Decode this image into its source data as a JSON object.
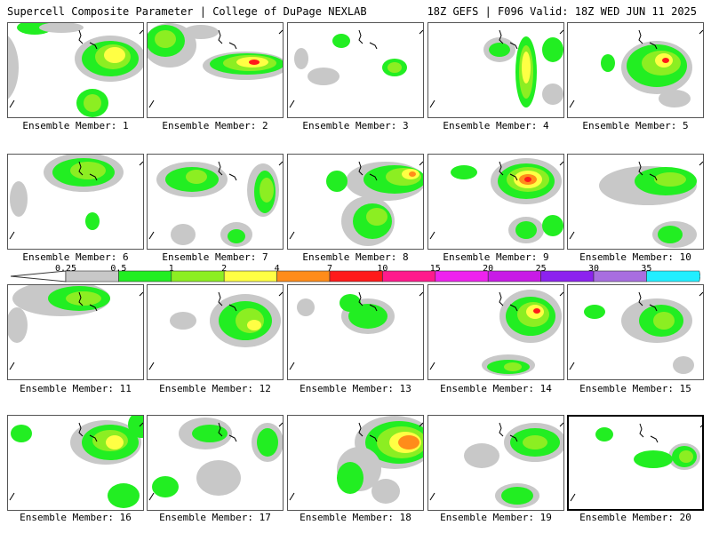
{
  "header": {
    "title": "Supercell Composite Parameter | College of DuPage NEXLAB",
    "run_info": "18Z GEFS | F096 Valid: 18Z WED JUN 11 2025"
  },
  "caption_prefix": "Ensemble Member: ",
  "selected_member": 20,
  "members": [
    {
      "label": "Ensemble Member: 1"
    },
    {
      "label": "Ensemble Member: 2"
    },
    {
      "label": "Ensemble Member: 3"
    },
    {
      "label": "Ensemble Member: 4"
    },
    {
      "label": "Ensemble Member: 5"
    },
    {
      "label": "Ensemble Member: 6"
    },
    {
      "label": "Ensemble Member: 7"
    },
    {
      "label": "Ensemble Member: 8"
    },
    {
      "label": "Ensemble Member: 9"
    },
    {
      "label": "Ensemble Member: 10"
    },
    {
      "label": "Ensemble Member: 11"
    },
    {
      "label": "Ensemble Member: 12"
    },
    {
      "label": "Ensemble Member: 13"
    },
    {
      "label": "Ensemble Member: 14"
    },
    {
      "label": "Ensemble Member: 15"
    },
    {
      "label": "Ensemble Member: 16"
    },
    {
      "label": "Ensemble Member: 17"
    },
    {
      "label": "Ensemble Member: 18"
    },
    {
      "label": "Ensemble Member: 19"
    },
    {
      "label": "Ensemble Member: 20"
    }
  ],
  "colorbar": {
    "thresholds": [
      "0.25",
      "0.5",
      "1",
      "2",
      "4",
      "7",
      "10",
      "15",
      "20",
      "25",
      "30",
      "35"
    ],
    "colors": [
      "#c8c8c8",
      "#22ee22",
      "#8cee22",
      "#ffff44",
      "#ff8c1a",
      "#ff1a1a",
      "#ff1a8c",
      "#ee22ee",
      "#c81ae6",
      "#8c22ee",
      "#a86ee0",
      "#22eeff"
    ]
  },
  "colors": {
    "gray": "#c8c8c8",
    "green": "#22ee22",
    "lightgreen": "#8cee22",
    "yellow": "#ffff44",
    "orange": "#ff8c1a",
    "red": "#ff1a1a"
  }
}
